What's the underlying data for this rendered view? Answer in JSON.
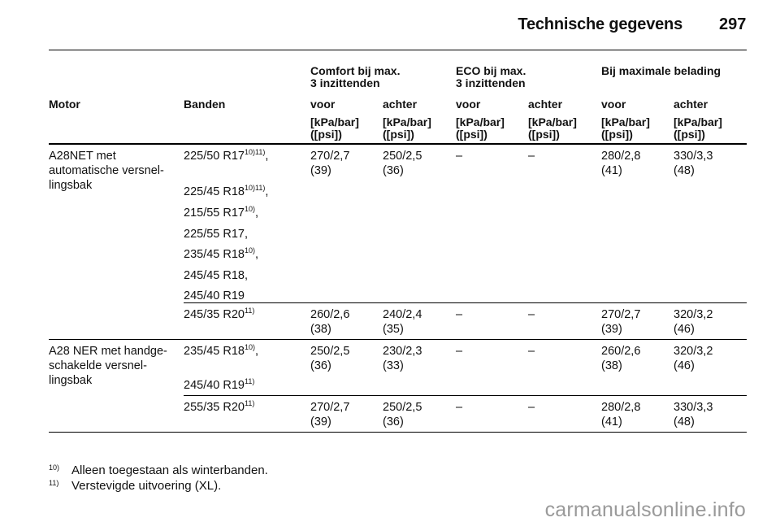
{
  "header": {
    "title": "Technische gegevens",
    "page_number": "297"
  },
  "table": {
    "group_headers": {
      "comfort": "Comfort bij max.\n3 inzittenden",
      "eco": "ECO bij max.\n3 inzittenden",
      "max": "Bij maximale belading"
    },
    "columns": {
      "motor": "Motor",
      "banden": "Banden",
      "voor1": "voor",
      "achter1": "achter",
      "voor2": "voor",
      "achter2": "achter",
      "voor3": "voor",
      "achter3": "achter"
    },
    "unit": "[kPa/bar]\n([psi])",
    "rows": [
      {
        "motor": "A28NET met\nautomatische versnel-\nlingsbak",
        "tires": [
          {
            "size": "225/50 R17",
            "note": "10)11)",
            "suffix": ","
          },
          {
            "size": "225/45 R18",
            "note": "10)11)",
            "suffix": ","
          },
          {
            "size": "215/55 R17",
            "note": "10)",
            "suffix": ","
          },
          {
            "size": "225/55 R17",
            "note": "",
            "suffix": ","
          },
          {
            "size": "235/45 R18",
            "note": "10)",
            "suffix": ","
          },
          {
            "size": "245/45 R18",
            "note": "",
            "suffix": ","
          },
          {
            "size": "245/40 R19",
            "note": "",
            "suffix": ""
          }
        ],
        "values": [
          "270/2,7\n(39)",
          "250/2,5\n(36)",
          "–",
          "–",
          "280/2,8\n(41)",
          "330/3,3\n(48)"
        ]
      },
      {
        "motor": "",
        "tires": [
          {
            "size": "245/35 R20",
            "note": "11)",
            "suffix": ""
          }
        ],
        "values": [
          "260/2,6\n(38)",
          "240/2,4\n(35)",
          "–",
          "–",
          "270/2,7\n(39)",
          "320/3,2\n(46)"
        ]
      },
      {
        "motor": "A28 NER met handge-\nschakelde versnel-\nlingsbak",
        "tires": [
          {
            "size": "235/45 R18",
            "note": "10)",
            "suffix": ","
          },
          {
            "size": "245/40 R19",
            "note": "11)",
            "suffix": ""
          }
        ],
        "values": [
          "250/2,5\n(36)",
          "230/2,3\n(33)",
          "–",
          "–",
          "260/2,6\n(38)",
          "320/3,2\n(46)"
        ]
      },
      {
        "motor": "",
        "tires": [
          {
            "size": "255/35 R20",
            "note": "11)",
            "suffix": ""
          }
        ],
        "values": [
          "270/2,7\n(39)",
          "250/2,5\n(36)",
          "–",
          "–",
          "280/2,8\n(41)",
          "330/3,3\n(48)"
        ]
      }
    ]
  },
  "footnotes": [
    {
      "num": "10)",
      "text": "Alleen toegestaan als winterbanden."
    },
    {
      "num": "11)",
      "text": "Verstevigde uitvoering (XL)."
    }
  ],
  "watermark": "carmanualsonline.info"
}
